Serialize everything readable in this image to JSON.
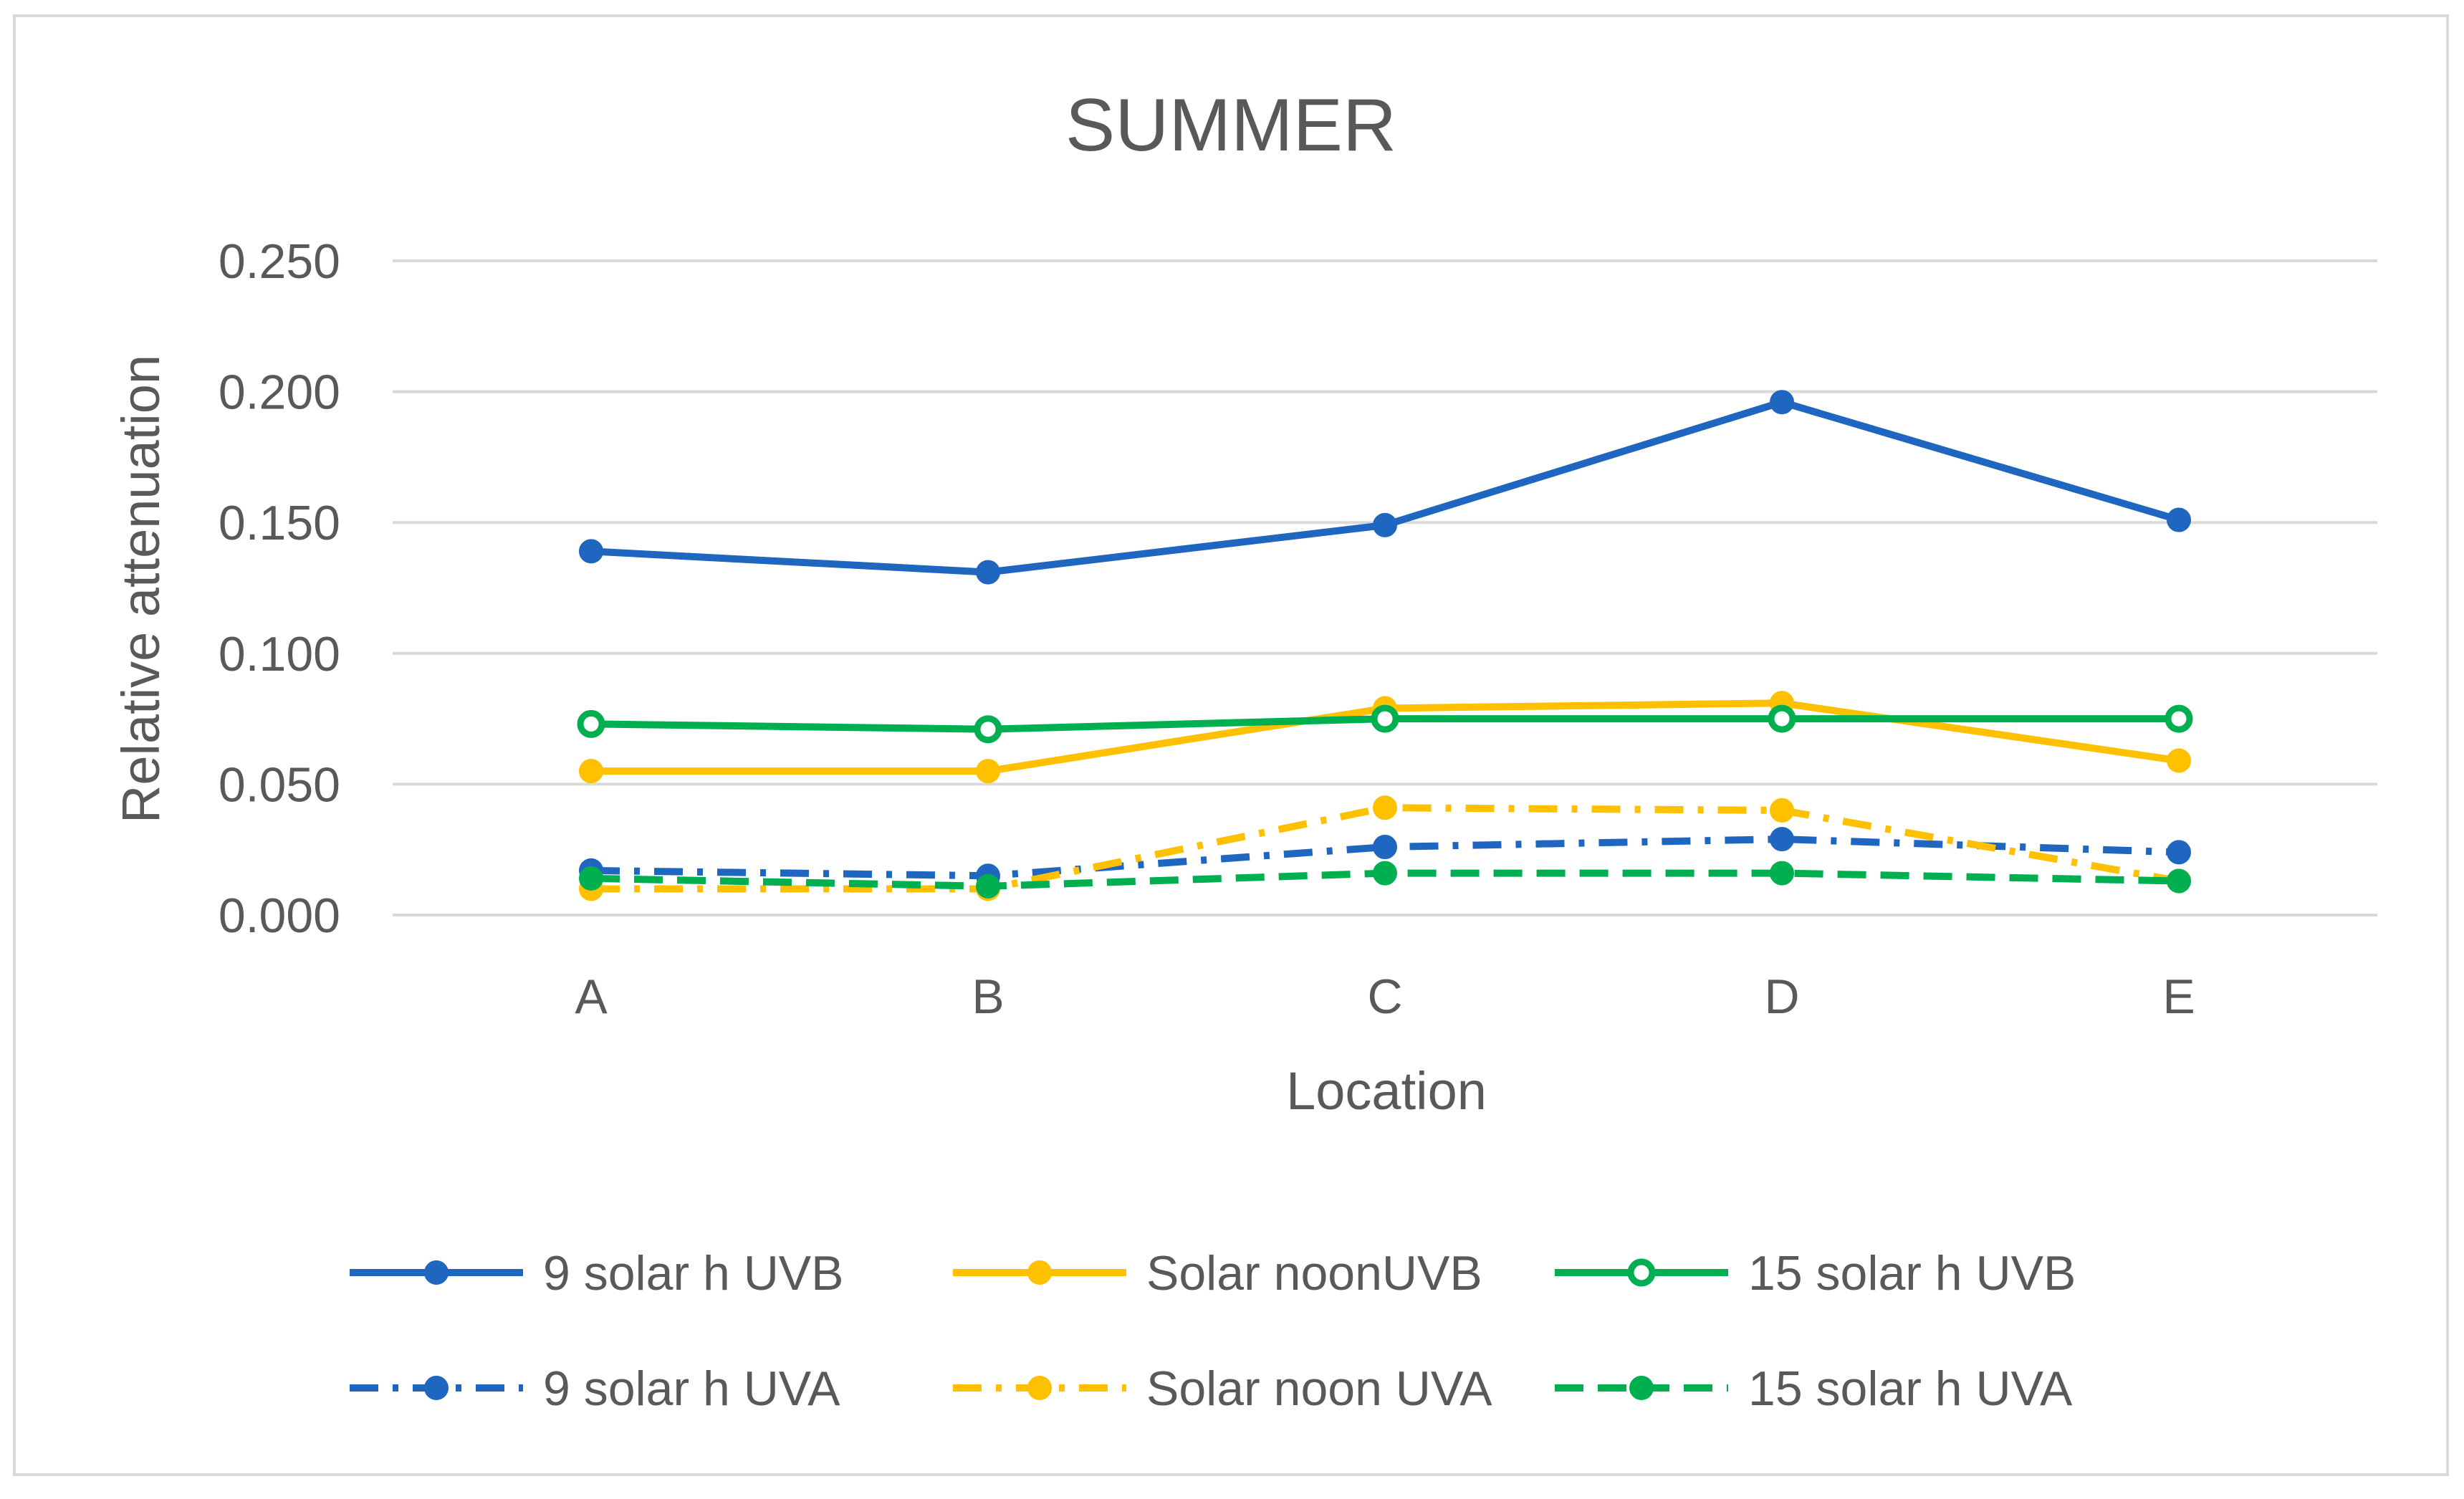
{
  "chart_data": {
    "type": "line",
    "title": "SUMMER",
    "xlabel": "Location",
    "ylabel": "Relative attenuation",
    "categories": [
      "A",
      "B",
      "C",
      "D",
      "E"
    ],
    "ylim": [
      0,
      0.25
    ],
    "yticks": [
      0,
      0.05,
      0.1,
      0.15,
      0.2,
      0.25
    ],
    "ytick_labels": [
      "0.000",
      "0.050",
      "0.100",
      "0.150",
      "0.200",
      "0.250"
    ],
    "grid": true,
    "legend_position": "bottom",
    "series": [
      {
        "name": "9  solar h UVB",
        "values": [
          0.139,
          0.131,
          0.149,
          0.196,
          0.151
        ],
        "color": "#1f66c1",
        "dash": "solid",
        "marker": "filled"
      },
      {
        "name": "Solar noonUVB",
        "values": [
          0.055,
          0.055,
          0.079,
          0.081,
          0.059
        ],
        "color": "#ffc000",
        "dash": "solid",
        "marker": "filled"
      },
      {
        "name": "15 solar h UVB",
        "values": [
          0.073,
          0.071,
          0.075,
          0.075,
          0.075
        ],
        "color": "#00b050",
        "dash": "solid",
        "marker": "ring"
      },
      {
        "name": "9 solar h UVA",
        "values": [
          0.017,
          0.015,
          0.026,
          0.029,
          0.024
        ],
        "color": "#1f66c1",
        "dash": "dashdot",
        "marker": "filled"
      },
      {
        "name": "Solar noon UVA",
        "values": [
          0.01,
          0.01,
          0.041,
          0.04,
          0.013
        ],
        "color": "#ffc000",
        "dash": "dashdot",
        "marker": "filled"
      },
      {
        "name": "15 solar h UVA",
        "values": [
          0.014,
          0.011,
          0.016,
          0.016,
          0.013
        ],
        "color": "#00b050",
        "dash": "dash",
        "marker": "filled"
      }
    ]
  },
  "colors": {
    "grid": "#d9d9d9",
    "text": "#595959",
    "frame": "#d9d9d9"
  }
}
